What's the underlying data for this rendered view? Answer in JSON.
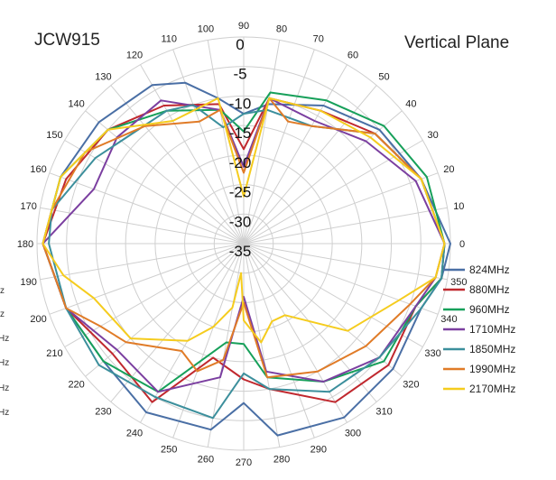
{
  "chart_data": {
    "type": "line",
    "subtype": "polar-radar",
    "title_left": "JCW915",
    "title_right": "Vertical Plane",
    "angle_ticks": [
      0,
      10,
      20,
      30,
      40,
      50,
      60,
      70,
      80,
      90,
      100,
      110,
      120,
      130,
      140,
      150,
      160,
      170,
      180,
      190,
      200,
      210,
      220,
      230,
      240,
      250,
      260,
      270,
      280,
      290,
      300,
      310,
      320,
      330,
      340,
      350
    ],
    "radial_ticks": [
      0,
      -5,
      -10,
      -15,
      -20,
      -25,
      -30,
      -35
    ],
    "radial_range": [
      -35,
      0
    ],
    "grid": true,
    "legend_position": "right",
    "cutoff_labels": [
      "z",
      "z",
      "Hz",
      "Hz",
      "Hz",
      "Hz"
    ],
    "series": [
      {
        "name": "824MHz",
        "color": "#4A6FA5",
        "values": [
          [
            0,
            0
          ],
          [
            20,
            -3
          ],
          [
            40,
            -5
          ],
          [
            60,
            -8
          ],
          [
            80,
            -11
          ],
          [
            90,
            -13
          ],
          [
            100,
            -10
          ],
          [
            110,
            -6
          ],
          [
            120,
            -4
          ],
          [
            140,
            -3
          ],
          [
            160,
            -2
          ],
          [
            180,
            -1
          ],
          [
            200,
            -3
          ],
          [
            220,
            -4
          ],
          [
            240,
            -2
          ],
          [
            260,
            -3
          ],
          [
            270,
            -8
          ],
          [
            280,
            -2
          ],
          [
            300,
            -1
          ],
          [
            320,
            -2
          ],
          [
            340,
            -3
          ],
          [
            350,
            -1
          ]
        ]
      },
      {
        "name": "880MHz",
        "color": "#C0282E",
        "values": [
          [
            0,
            -1
          ],
          [
            20,
            -3
          ],
          [
            40,
            -6
          ],
          [
            60,
            -9
          ],
          [
            80,
            -10
          ],
          [
            90,
            -19
          ],
          [
            100,
            -11
          ],
          [
            120,
            -8
          ],
          [
            140,
            -5
          ],
          [
            160,
            -3
          ],
          [
            180,
            -1
          ],
          [
            200,
            -3
          ],
          [
            220,
            -6
          ],
          [
            240,
            -4
          ],
          [
            255,
            -15
          ],
          [
            270,
            -12
          ],
          [
            280,
            -10
          ],
          [
            300,
            -4
          ],
          [
            320,
            -3
          ],
          [
            340,
            -4
          ],
          [
            350,
            -1
          ]
        ]
      },
      {
        "name": "960MHz",
        "color": "#17A05A",
        "values": [
          [
            0,
            -1
          ],
          [
            20,
            -2
          ],
          [
            40,
            -4
          ],
          [
            60,
            -7
          ],
          [
            80,
            -9
          ],
          [
            90,
            -16
          ],
          [
            100,
            -12
          ],
          [
            120,
            -9
          ],
          [
            140,
            -5
          ],
          [
            160,
            -2
          ],
          [
            180,
            -1
          ],
          [
            200,
            -3
          ],
          [
            220,
            -4
          ],
          [
            240,
            -6
          ],
          [
            260,
            -18
          ],
          [
            270,
            -18
          ],
          [
            280,
            -12
          ],
          [
            300,
            -8
          ],
          [
            320,
            -4
          ],
          [
            340,
            -4
          ],
          [
            350,
            -1
          ]
        ]
      },
      {
        "name": "1710MHz",
        "color": "#7B3FA0",
        "values": [
          [
            0,
            -1
          ],
          [
            20,
            -4
          ],
          [
            40,
            -8
          ],
          [
            60,
            -11
          ],
          [
            80,
            -10
          ],
          [
            90,
            -22
          ],
          [
            100,
            -12
          ],
          [
            120,
            -7
          ],
          [
            140,
            -7
          ],
          [
            160,
            -8
          ],
          [
            180,
            -1
          ],
          [
            200,
            -3
          ],
          [
            220,
            -7
          ],
          [
            240,
            -6
          ],
          [
            260,
            -12
          ],
          [
            270,
            -26
          ],
          [
            280,
            -13
          ],
          [
            300,
            -8
          ],
          [
            320,
            -5
          ],
          [
            340,
            -4
          ],
          [
            350,
            -2
          ]
        ]
      },
      {
        "name": "1850MHz",
        "color": "#3C8F9C",
        "values": [
          [
            0,
            -1
          ],
          [
            20,
            -3
          ],
          [
            40,
            -6
          ],
          [
            60,
            -12
          ],
          [
            80,
            -12
          ],
          [
            90,
            -13
          ],
          [
            100,
            -15
          ],
          [
            110,
            -10
          ],
          [
            120,
            -9
          ],
          [
            150,
            -6
          ],
          [
            170,
            -2
          ],
          [
            180,
            -2
          ],
          [
            200,
            -3
          ],
          [
            220,
            -3
          ],
          [
            240,
            -5
          ],
          [
            260,
            -5
          ],
          [
            270,
            -13
          ],
          [
            280,
            -10
          ],
          [
            300,
            -6
          ],
          [
            320,
            -5
          ],
          [
            340,
            -3
          ],
          [
            350,
            -1
          ]
        ]
      },
      {
        "name": "1990MHz",
        "color": "#E07B27",
        "values": [
          [
            0,
            -1
          ],
          [
            20,
            -3
          ],
          [
            40,
            -6
          ],
          [
            60,
            -12
          ],
          [
            70,
            -13
          ],
          [
            80,
            -10
          ],
          [
            90,
            -23
          ],
          [
            100,
            -12
          ],
          [
            110,
            -13
          ],
          [
            130,
            -9
          ],
          [
            150,
            -4
          ],
          [
            170,
            -2
          ],
          [
            180,
            -1
          ],
          [
            200,
            -3
          ],
          [
            210,
            -7
          ],
          [
            220,
            -9
          ],
          [
            240,
            -14
          ],
          [
            250,
            -12
          ],
          [
            260,
            -15
          ],
          [
            270,
            -25
          ],
          [
            280,
            -12
          ],
          [
            300,
            -10
          ],
          [
            320,
            -8
          ],
          [
            340,
            -5
          ],
          [
            350,
            -2
          ]
        ]
      },
      {
        "name": "2170MHz",
        "color": "#F5CC1E",
        "values": [
          [
            0,
            -1
          ],
          [
            20,
            -3
          ],
          [
            40,
            -7
          ],
          [
            60,
            -9
          ],
          [
            80,
            -10
          ],
          [
            90,
            -27
          ],
          [
            100,
            -10
          ],
          [
            120,
            -11
          ],
          [
            140,
            -5
          ],
          [
            160,
            -2
          ],
          [
            180,
            -1
          ],
          [
            190,
            -4
          ],
          [
            200,
            -8
          ],
          [
            220,
            -10
          ],
          [
            240,
            -16
          ],
          [
            250,
            -20
          ],
          [
            260,
            -24
          ],
          [
            265,
            -30
          ],
          [
            270,
            -22
          ],
          [
            280,
            -18
          ],
          [
            290,
            -21
          ],
          [
            300,
            -21
          ],
          [
            320,
            -12
          ],
          [
            340,
            -7
          ],
          [
            350,
            -2
          ]
        ]
      }
    ]
  }
}
